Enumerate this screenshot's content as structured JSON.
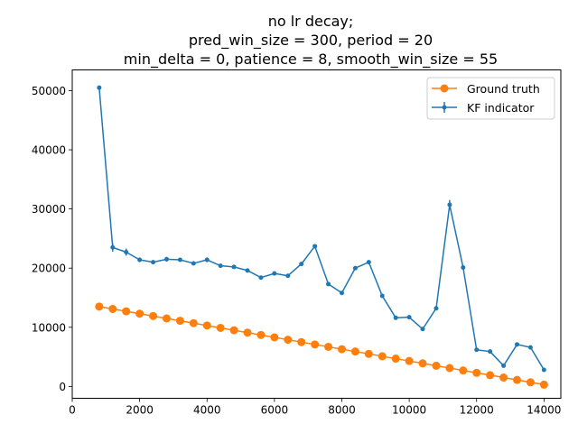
{
  "chart_data": {
    "type": "line",
    "title_lines": [
      "no lr decay;",
      "pred_win_size = 300, period = 20",
      "min_delta = 0, patience = 8, smooth_win_size = 55"
    ],
    "xlabel": "",
    "ylabel": "",
    "xlim": [
      0,
      14500
    ],
    "ylim": [
      -2000,
      53500
    ],
    "xticks": [
      0,
      2000,
      4000,
      6000,
      8000,
      10000,
      12000,
      14000
    ],
    "yticks": [
      0,
      10000,
      20000,
      30000,
      40000,
      50000
    ],
    "grid": false,
    "legend_position": "upper-right",
    "x": [
      800,
      1200,
      1600,
      2000,
      2400,
      2800,
      3200,
      3600,
      4000,
      4400,
      4800,
      5200,
      5600,
      6000,
      6400,
      6800,
      7200,
      7600,
      8000,
      8400,
      8800,
      9200,
      9600,
      10000,
      10400,
      10800,
      11200,
      11600,
      12000,
      12400,
      12800,
      13200,
      13600,
      14000
    ],
    "series": [
      {
        "name": "Ground truth",
        "color": "#ff7f0e",
        "marker": "circle",
        "values": [
          13500,
          13100,
          12700,
          12300,
          11900,
          11500,
          11100,
          10700,
          10300,
          9900,
          9500,
          9100,
          8700,
          8300,
          7900,
          7500,
          7100,
          6700,
          6300,
          5900,
          5500,
          5100,
          4700,
          4300,
          3900,
          3500,
          3100,
          2700,
          2300,
          1900,
          1500,
          1100,
          700,
          300
        ]
      },
      {
        "name": "KF indicator",
        "color": "#1f77b4",
        "marker": "point",
        "error_bars": true,
        "values": [
          50500,
          23500,
          22700,
          21400,
          21000,
          21500,
          21400,
          20800,
          21400,
          20400,
          20200,
          19600,
          18400,
          19100,
          18700,
          20700,
          23700,
          17300,
          15800,
          20000,
          21000,
          15300,
          11600,
          11700,
          9700,
          13200,
          30700,
          20100,
          6200,
          5900,
          3500,
          7100,
          6600,
          2800
        ],
        "errors": [
          0,
          700,
          600,
          400,
          300,
          400,
          300,
          300,
          400,
          300,
          300,
          300,
          300,
          300,
          300,
          300,
          300,
          200,
          200,
          200,
          200,
          200,
          200,
          200,
          200,
          300,
          800,
          300,
          200,
          200,
          200,
          200,
          200,
          200
        ]
      }
    ]
  }
}
